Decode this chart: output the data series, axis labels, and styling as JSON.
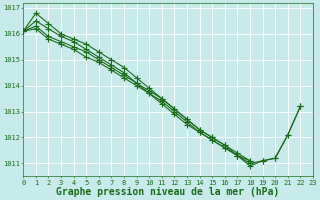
{
  "title": "Graphe pression niveau de la mer (hPa)",
  "background_color": "#c8eaea",
  "grid_color": "#ffffff",
  "line_color": "#1a6b1a",
  "marker_color": "#1a6b1a",
  "xlim": [
    0,
    23
  ],
  "ylim": [
    1010.5,
    1017.2
  ],
  "xticks": [
    0,
    1,
    2,
    3,
    4,
    5,
    6,
    7,
    8,
    9,
    10,
    11,
    12,
    13,
    14,
    15,
    16,
    17,
    18,
    19,
    20,
    21,
    22,
    23
  ],
  "yticks": [
    1011,
    1012,
    1013,
    1014,
    1015,
    1016,
    1017
  ],
  "series": [
    [
      1016.1,
      1016.8,
      1016.4,
      1016.0,
      1015.8,
      1015.6,
      1015.3,
      1015.0,
      1014.7,
      1014.3,
      1013.9,
      1013.5,
      1013.1,
      1012.7,
      1012.3,
      1012.0,
      1011.7,
      1011.3,
      1010.9,
      1011.1,
      1011.2,
      1012.1,
      1013.2,
      null
    ],
    [
      1016.1,
      1016.5,
      1016.2,
      1015.9,
      1015.7,
      1015.4,
      1015.1,
      1014.8,
      1014.5,
      1014.1,
      1013.7,
      1013.3,
      1012.9,
      1012.5,
      1012.2,
      1011.9,
      1011.6,
      1011.3,
      1011.0,
      1011.1,
      1011.2,
      1012.1,
      1013.2,
      null
    ],
    [
      1016.1,
      1016.3,
      1015.9,
      1015.7,
      1015.5,
      1015.3,
      1015.0,
      1014.7,
      1014.4,
      1014.1,
      1013.8,
      1013.5,
      1013.1,
      1012.7,
      1012.3,
      1012.0,
      1011.7,
      1011.4,
      1011.1,
      null,
      null,
      null,
      null,
      null
    ],
    [
      1016.1,
      1016.2,
      1015.8,
      1015.6,
      1015.4,
      1015.1,
      1014.9,
      1014.6,
      1014.3,
      1014.0,
      1013.7,
      1013.4,
      1013.0,
      1012.6,
      1012.2,
      1011.9,
      1011.6,
      1011.3,
      1011.1,
      null,
      null,
      null,
      null,
      null
    ]
  ],
  "marker_style": "+",
  "marker_size": 4,
  "linewidth": 0.8,
  "title_fontsize": 7,
  "tick_fontsize": 5,
  "xlabel_pad": 1
}
